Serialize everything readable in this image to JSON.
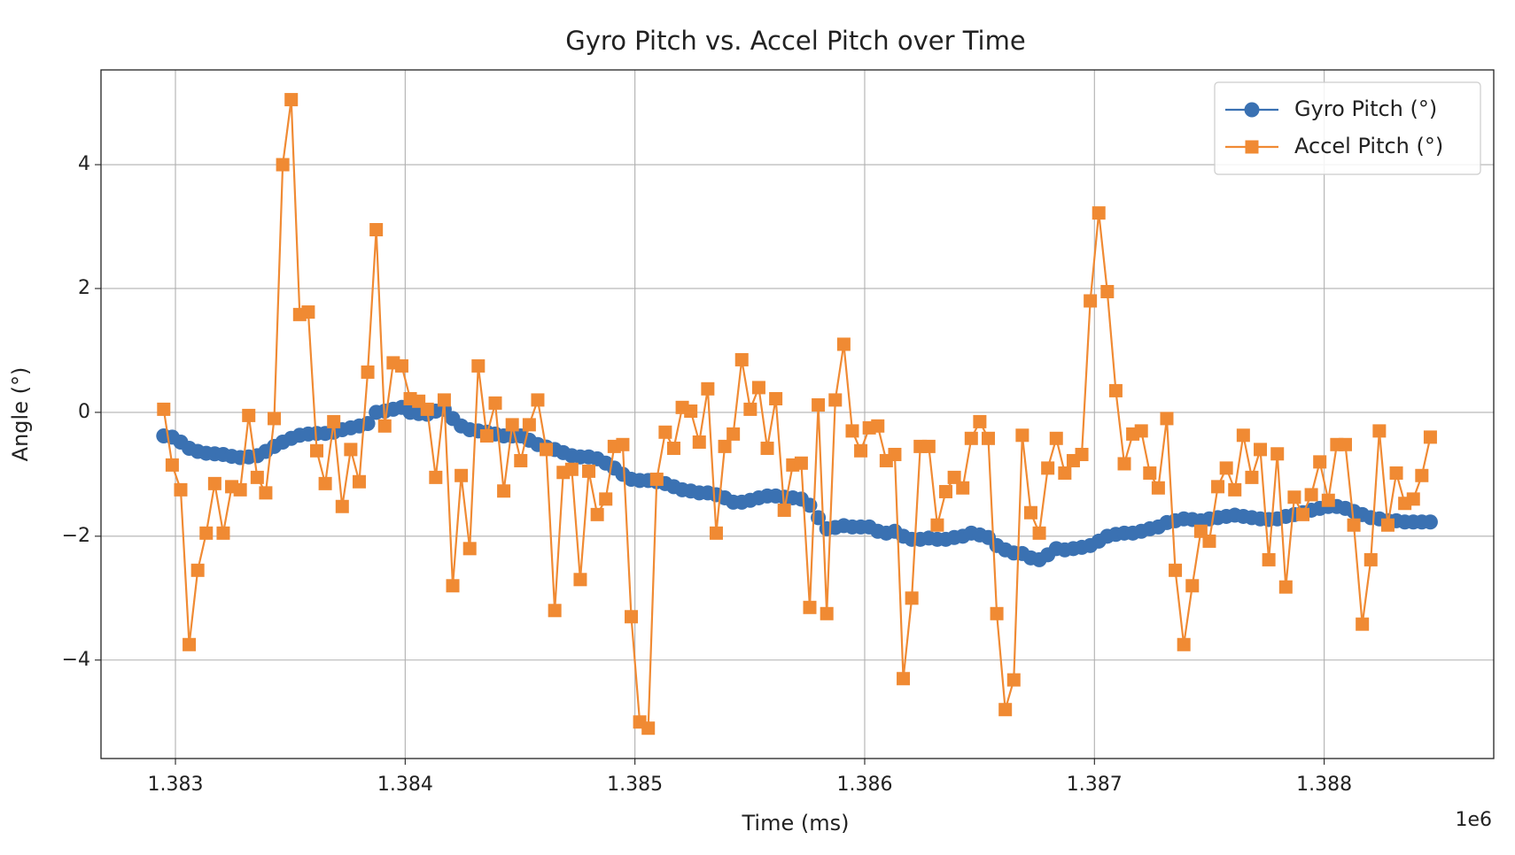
{
  "chart_data": {
    "type": "line",
    "title": "Gyro Pitch vs. Accel Pitch over Time",
    "xlabel": "Time (ms)",
    "ylabel": "Angle (°)",
    "x_offset_label": "1e6",
    "x": [
      1382949,
      1382986,
      1383023,
      1383060,
      1383097,
      1383134,
      1383171,
      1383208,
      1383245,
      1383282,
      1383319,
      1383356,
      1383393,
      1383430,
      1383467,
      1383504,
      1383541,
      1383578,
      1383615,
      1383652,
      1383689,
      1383726,
      1383763,
      1383800,
      1383837,
      1383874,
      1383911,
      1383948,
      1383985,
      1384022,
      1384059,
      1384096,
      1384133,
      1384170,
      1384207,
      1384244,
      1384281,
      1384318,
      1384355,
      1384392,
      1384429,
      1384466,
      1384503,
      1384540,
      1384577,
      1384614,
      1384651,
      1384688,
      1384725,
      1384762,
      1384799,
      1384836,
      1384873,
      1384910,
      1384947,
      1384984,
      1385021,
      1385058,
      1385095,
      1385132,
      1385169,
      1385206,
      1385243,
      1385280,
      1385317,
      1385354,
      1385391,
      1385428,
      1385465,
      1385502,
      1385539,
      1385576,
      1385613,
      1385650,
      1385687,
      1385724,
      1385761,
      1385798,
      1385835,
      1385872,
      1385909,
      1385946,
      1385983,
      1386020,
      1386057,
      1386094,
      1386131,
      1386168,
      1386205,
      1386242,
      1386279,
      1386316,
      1386353,
      1386390,
      1386427,
      1386464,
      1386501,
      1386538,
      1386575,
      1386612,
      1386649,
      1386686,
      1386723,
      1386760,
      1386797,
      1386834,
      1386871,
      1386908,
      1386945,
      1386982,
      1387019,
      1387056,
      1387093,
      1387130,
      1387167,
      1387204,
      1387241,
      1387278,
      1387315,
      1387352,
      1387389,
      1387426,
      1387463,
      1387500,
      1387537,
      1387574,
      1387611,
      1387648,
      1387685,
      1387722,
      1387759,
      1387796,
      1387833,
      1387870,
      1387907,
      1387944,
      1387981,
      1388018,
      1388055,
      1388092,
      1388129,
      1388166,
      1388203,
      1388240,
      1388277,
      1388314,
      1388351,
      1388388,
      1388425,
      1388462
    ],
    "series": [
      {
        "name": "Gyro Pitch (°)",
        "color": "#3a71b2",
        "marker": "circle",
        "values": [
          -0.38,
          -0.4,
          -0.48,
          -0.58,
          -0.63,
          -0.66,
          -0.67,
          -0.68,
          -0.71,
          -0.73,
          -0.72,
          -0.7,
          -0.63,
          -0.55,
          -0.48,
          -0.42,
          -0.37,
          -0.35,
          -0.34,
          -0.34,
          -0.32,
          -0.28,
          -0.25,
          -0.22,
          -0.18,
          0.0,
          0.02,
          0.05,
          0.08,
          0.0,
          -0.02,
          -0.03,
          0.02,
          0.05,
          -0.1,
          -0.22,
          -0.28,
          -0.3,
          -0.32,
          -0.35,
          -0.38,
          -0.38,
          -0.38,
          -0.45,
          -0.52,
          -0.56,
          -0.6,
          -0.65,
          -0.7,
          -0.72,
          -0.72,
          -0.75,
          -0.82,
          -0.9,
          -1.0,
          -1.08,
          -1.1,
          -1.1,
          -1.12,
          -1.15,
          -1.2,
          -1.25,
          -1.27,
          -1.3,
          -1.3,
          -1.33,
          -1.38,
          -1.45,
          -1.45,
          -1.42,
          -1.38,
          -1.35,
          -1.35,
          -1.37,
          -1.38,
          -1.4,
          -1.5,
          -1.7,
          -1.88,
          -1.86,
          -1.83,
          -1.85,
          -1.85,
          -1.85,
          -1.92,
          -1.95,
          -1.92,
          -2.0,
          -2.05,
          -2.05,
          -2.03,
          -2.05,
          -2.05,
          -2.02,
          -2.0,
          -1.95,
          -1.98,
          -2.02,
          -2.15,
          -2.22,
          -2.27,
          -2.28,
          -2.35,
          -2.38,
          -2.3,
          -2.2,
          -2.22,
          -2.2,
          -2.18,
          -2.15,
          -2.08,
          -2.0,
          -1.97,
          -1.95,
          -1.95,
          -1.92,
          -1.88,
          -1.85,
          -1.78,
          -1.75,
          -1.72,
          -1.73,
          -1.75,
          -1.72,
          -1.7,
          -1.68,
          -1.66,
          -1.68,
          -1.7,
          -1.72,
          -1.73,
          -1.72,
          -1.68,
          -1.65,
          -1.62,
          -1.58,
          -1.55,
          -1.52,
          -1.52,
          -1.55,
          -1.6,
          -1.65,
          -1.7,
          -1.72,
          -1.75,
          -1.75,
          -1.77,
          -1.77,
          -1.77,
          -1.77
        ]
      },
      {
        "name": "Accel Pitch (°)",
        "color": "#f08a33",
        "marker": "square",
        "values": [
          0.05,
          -0.85,
          -1.25,
          -3.75,
          -2.55,
          -1.95,
          -1.15,
          -1.95,
          -1.2,
          -1.25,
          -0.05,
          -1.05,
          -1.3,
          -0.1,
          4.0,
          5.05,
          1.58,
          1.62,
          -0.62,
          -1.15,
          -0.15,
          -1.52,
          -0.6,
          -1.12,
          0.65,
          2.95,
          -0.22,
          0.8,
          0.75,
          0.22,
          0.18,
          0.05,
          -1.05,
          0.2,
          -2.8,
          -1.02,
          -2.2,
          0.75,
          -0.38,
          0.15,
          -1.27,
          -0.2,
          -0.78,
          -0.2,
          0.2,
          -0.6,
          -3.2,
          -0.97,
          -0.92,
          -2.7,
          -0.95,
          -1.65,
          -1.4,
          -0.55,
          -0.52,
          -3.3,
          -5.0,
          -5.1,
          -1.08,
          -0.32,
          -0.58,
          0.08,
          0.02,
          -0.48,
          0.38,
          -1.95,
          -0.55,
          -0.35,
          0.85,
          0.05,
          0.4,
          -0.58,
          0.22,
          -1.58,
          -0.85,
          -0.82,
          -3.15,
          0.12,
          -3.25,
          0.2,
          1.1,
          -0.3,
          -0.62,
          -0.25,
          -0.22,
          -0.78,
          -0.68,
          -4.3,
          -3.0,
          -0.55,
          -0.55,
          -1.82,
          -1.28,
          -1.05,
          -1.22,
          -0.42,
          -0.15,
          -0.42,
          -3.25,
          -4.8,
          -4.32,
          -0.37,
          -1.62,
          -1.95,
          -0.9,
          -0.42,
          -0.98,
          -0.78,
          -0.68,
          1.8,
          3.22,
          1.95,
          0.35,
          -0.83,
          -0.35,
          -0.3,
          -0.98,
          -1.22,
          -0.1,
          -2.55,
          -3.75,
          -2.8,
          -1.92,
          -2.08,
          -1.2,
          -0.9,
          -1.25,
          -0.37,
          -1.05,
          -0.6,
          -2.38,
          -0.67,
          -2.82,
          -1.37,
          -1.65,
          -1.33,
          -0.8,
          -1.42,
          -0.52,
          -0.52,
          -1.82,
          -3.42,
          -2.38,
          -0.3,
          -1.82,
          -0.98,
          -1.47,
          -1.4,
          -1.02,
          -0.4
        ]
      }
    ],
    "xlim": [
      1382676,
      1388738
    ],
    "ylim": [
      -5.59,
      5.53
    ],
    "xticks": [
      {
        "value": 1383000,
        "label": "1.383"
      },
      {
        "value": 1384000,
        "label": "1.384"
      },
      {
        "value": 1385000,
        "label": "1.385"
      },
      {
        "value": 1386000,
        "label": "1.386"
      },
      {
        "value": 1387000,
        "label": "1.387"
      },
      {
        "value": 1388000,
        "label": "1.388"
      }
    ],
    "yticks": [
      {
        "value": -4,
        "label": "−4"
      },
      {
        "value": -2,
        "label": "−2"
      },
      0,
      2,
      4
    ],
    "grid": true,
    "legend": "upper right"
  }
}
